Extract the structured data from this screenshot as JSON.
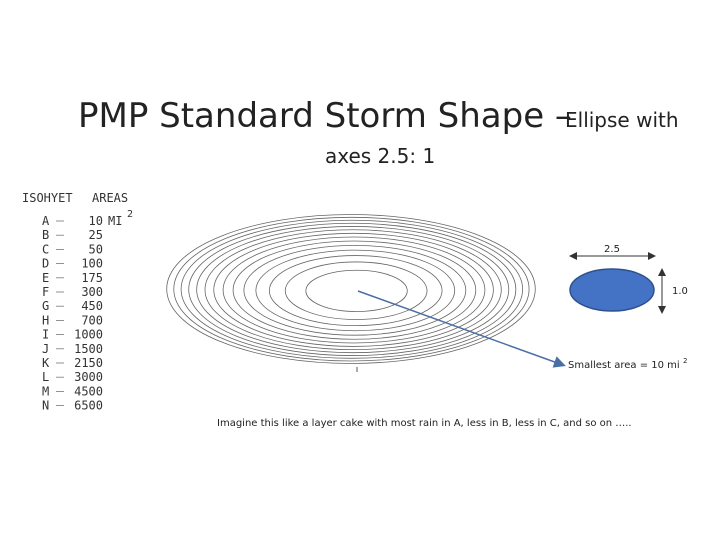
{
  "title": {
    "main": "PMP Standard Storm Shape –",
    "small": "Ellipse with",
    "line2": "axes 2.5: 1"
  },
  "isohyet_table": {
    "header_isohyet": "ISOHYET",
    "header_areas": "AREAS",
    "unit": "MI",
    "unit_sup": "2",
    "rows": [
      [
        "A",
        10
      ],
      [
        "B",
        25
      ],
      [
        "C",
        50
      ],
      [
        "D",
        100
      ],
      [
        "E",
        175
      ],
      [
        "F",
        300
      ],
      [
        "G",
        450
      ],
      [
        "H",
        700
      ],
      [
        "I",
        1000
      ],
      [
        "J",
        1500
      ],
      [
        "K",
        2150
      ],
      [
        "L",
        3000
      ],
      [
        "M",
        4500
      ],
      [
        "N",
        6500
      ]
    ]
  },
  "shape_labels": {
    "major_axis": "2.5",
    "minor_axis": "1.0"
  },
  "smallest_area": {
    "text": "Smallest area = 10 mi",
    "sup": "2"
  },
  "caption": "Imagine this like a layer cake with most rain in A, less in B, less in C, and so on ….."
}
